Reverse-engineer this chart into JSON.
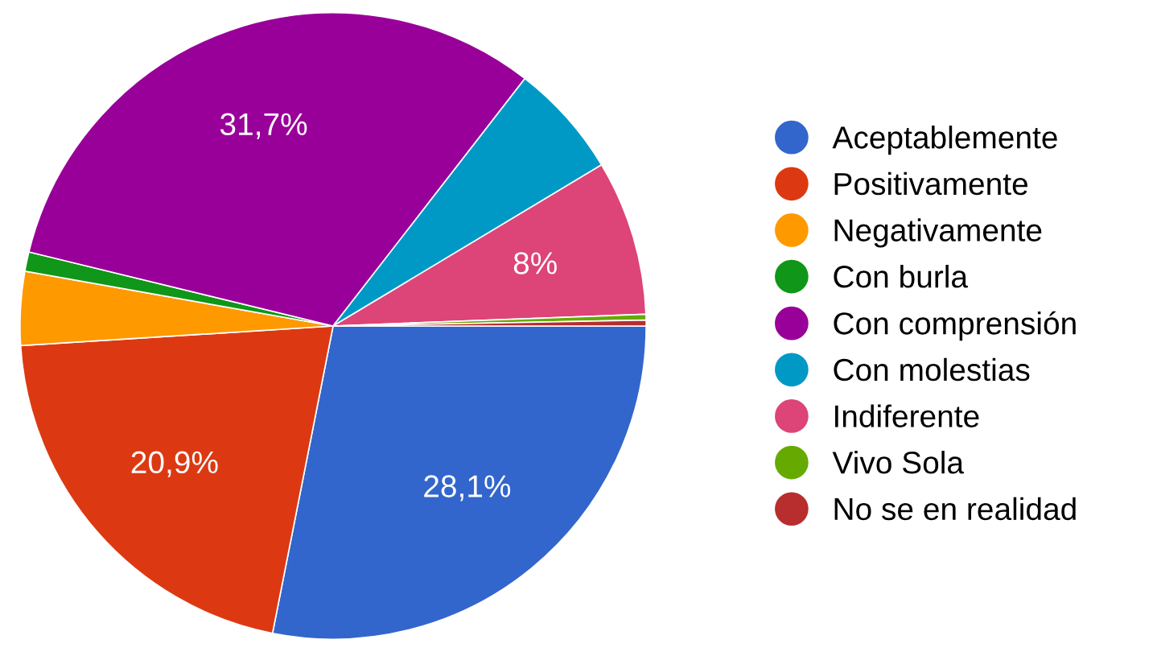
{
  "chart_data": {
    "type": "pie",
    "categories": [
      "Aceptablemente",
      "Positivamente",
      "Negativamente",
      "Con burla",
      "Con comprensión",
      "Con molestias",
      "Indiferente",
      "Vivo Sola",
      "No se en realidad"
    ],
    "values": [
      28.1,
      20.9,
      3.8,
      1.0,
      31.7,
      5.9,
      8,
      0.3,
      0.3
    ],
    "colors": [
      "#3366cc",
      "#dc3912",
      "#ff9900",
      "#109618",
      "#990099",
      "#0099c6",
      "#dd4477",
      "#66aa00",
      "#b82e2e"
    ],
    "value_labels": [
      "28,1%",
      "20,9%",
      null,
      null,
      "31,7%",
      null,
      "8%",
      null,
      null
    ],
    "legend": "right"
  }
}
